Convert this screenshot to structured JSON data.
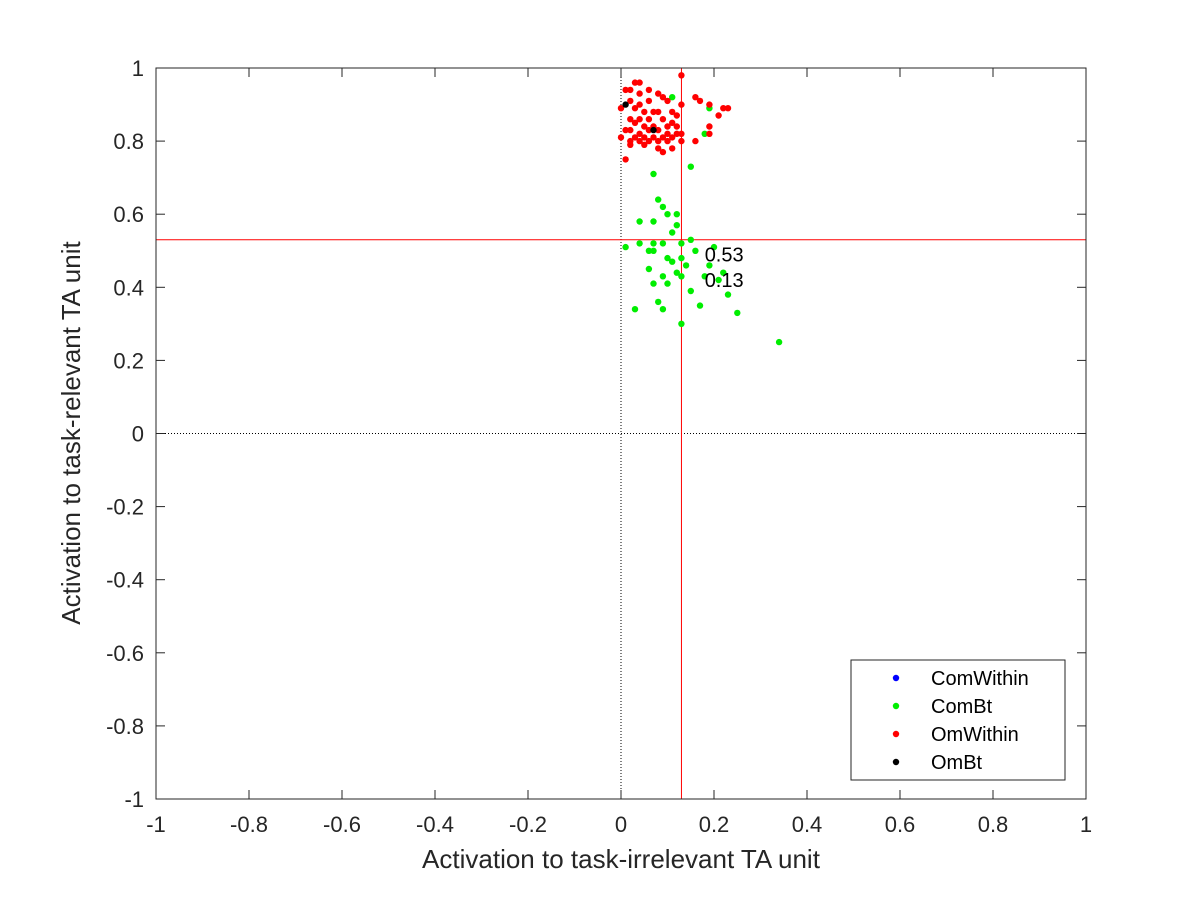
{
  "chart_data": {
    "type": "scatter",
    "xlabel": "Activation to task-irrelevant TA unit",
    "ylabel": "Activation to task-relevant TA unit",
    "xlim": [
      -1,
      1
    ],
    "ylim": [
      -1,
      1
    ],
    "xticks": [
      "-1",
      "-0.8",
      "-0.6",
      "-0.4",
      "-0.2",
      "0",
      "0.2",
      "0.4",
      "0.6",
      "0.8",
      "1"
    ],
    "yticks": [
      "-1",
      "-0.8",
      "-0.6",
      "-0.4",
      "-0.2",
      "0",
      "0.2",
      "0.4",
      "0.6",
      "0.8",
      "1"
    ],
    "grid": false,
    "legend_position": "bottom-right",
    "reference_lines": {
      "x": 0.13,
      "y": 0.53,
      "color": "#ff0000"
    },
    "zero_lines": {
      "x": 0,
      "y": 0,
      "style": "dotted"
    },
    "annotations": [
      {
        "text": "0.53",
        "x": 0.18,
        "y": 0.49
      },
      {
        "text": "0.13",
        "x": 0.18,
        "y": 0.42
      }
    ],
    "series": [
      {
        "name": "ComWithin",
        "color": "#0000ff",
        "points": []
      },
      {
        "name": "ComBt",
        "color": "#00ee00",
        "points": [
          [
            0.11,
            0.92
          ],
          [
            0.19,
            0.89
          ],
          [
            0.18,
            0.82
          ],
          [
            0.15,
            0.73
          ],
          [
            0.07,
            0.71
          ],
          [
            0.08,
            0.64
          ],
          [
            0.09,
            0.62
          ],
          [
            0.1,
            0.6
          ],
          [
            0.12,
            0.6
          ],
          [
            0.04,
            0.58
          ],
          [
            0.07,
            0.58
          ],
          [
            0.12,
            0.57
          ],
          [
            0.11,
            0.55
          ],
          [
            0.15,
            0.53
          ],
          [
            0.07,
            0.52
          ],
          [
            0.09,
            0.52
          ],
          [
            0.01,
            0.51
          ],
          [
            0.04,
            0.52
          ],
          [
            0.13,
            0.52
          ],
          [
            0.16,
            0.5
          ],
          [
            0.2,
            0.51
          ],
          [
            0.06,
            0.5
          ],
          [
            0.07,
            0.5
          ],
          [
            0.1,
            0.48
          ],
          [
            0.11,
            0.47
          ],
          [
            0.14,
            0.46
          ],
          [
            0.13,
            0.48
          ],
          [
            0.19,
            0.46
          ],
          [
            0.22,
            0.44
          ],
          [
            0.06,
            0.45
          ],
          [
            0.09,
            0.43
          ],
          [
            0.12,
            0.44
          ],
          [
            0.13,
            0.43
          ],
          [
            0.18,
            0.43
          ],
          [
            0.07,
            0.41
          ],
          [
            0.1,
            0.41
          ],
          [
            0.21,
            0.42
          ],
          [
            0.15,
            0.39
          ],
          [
            0.23,
            0.38
          ],
          [
            0.08,
            0.36
          ],
          [
            0.09,
            0.34
          ],
          [
            0.03,
            0.34
          ],
          [
            0.17,
            0.35
          ],
          [
            0.25,
            0.33
          ],
          [
            0.13,
            0.3
          ],
          [
            0.34,
            0.25
          ]
        ]
      },
      {
        "name": "OmWithin",
        "color": "#ff0000",
        "points": [
          [
            0.13,
            0.98
          ],
          [
            0.03,
            0.96
          ],
          [
            0.04,
            0.96
          ],
          [
            0.01,
            0.94
          ],
          [
            0.02,
            0.94
          ],
          [
            0.04,
            0.93
          ],
          [
            0.06,
            0.94
          ],
          [
            0.08,
            0.93
          ],
          [
            0.09,
            0.92
          ],
          [
            0.16,
            0.92
          ],
          [
            0.17,
            0.91
          ],
          [
            0.02,
            0.91
          ],
          [
            0.04,
            0.9
          ],
          [
            0.06,
            0.91
          ],
          [
            0.1,
            0.91
          ],
          [
            0.13,
            0.9
          ],
          [
            0.19,
            0.9
          ],
          [
            0.22,
            0.89
          ],
          [
            0.23,
            0.89
          ],
          [
            0.0,
            0.89
          ],
          [
            0.03,
            0.89
          ],
          [
            0.05,
            0.88
          ],
          [
            0.07,
            0.88
          ],
          [
            0.08,
            0.88
          ],
          [
            0.11,
            0.88
          ],
          [
            0.12,
            0.87
          ],
          [
            0.21,
            0.87
          ],
          [
            0.02,
            0.86
          ],
          [
            0.04,
            0.86
          ],
          [
            0.06,
            0.86
          ],
          [
            0.09,
            0.86
          ],
          [
            0.11,
            0.85
          ],
          [
            0.03,
            0.85
          ],
          [
            0.05,
            0.84
          ],
          [
            0.07,
            0.84
          ],
          [
            0.1,
            0.84
          ],
          [
            0.12,
            0.84
          ],
          [
            0.19,
            0.84
          ],
          [
            0.01,
            0.83
          ],
          [
            0.02,
            0.83
          ],
          [
            0.04,
            0.82
          ],
          [
            0.06,
            0.83
          ],
          [
            0.08,
            0.83
          ],
          [
            0.1,
            0.82
          ],
          [
            0.12,
            0.82
          ],
          [
            0.13,
            0.82
          ],
          [
            0.19,
            0.82
          ],
          [
            0.03,
            0.81
          ],
          [
            0.05,
            0.81
          ],
          [
            0.07,
            0.81
          ],
          [
            0.09,
            0.81
          ],
          [
            0.11,
            0.81
          ],
          [
            0.0,
            0.81
          ],
          [
            0.02,
            0.8
          ],
          [
            0.04,
            0.8
          ],
          [
            0.06,
            0.8
          ],
          [
            0.08,
            0.8
          ],
          [
            0.1,
            0.8
          ],
          [
            0.13,
            0.8
          ],
          [
            0.16,
            0.8
          ],
          [
            0.02,
            0.79
          ],
          [
            0.05,
            0.79
          ],
          [
            0.08,
            0.78
          ],
          [
            0.11,
            0.78
          ],
          [
            0.01,
            0.75
          ],
          [
            0.09,
            0.77
          ]
        ]
      },
      {
        "name": "OmBt",
        "color": "#000000",
        "points": [
          [
            0.01,
            0.9
          ],
          [
            0.07,
            0.83
          ]
        ]
      }
    ]
  }
}
